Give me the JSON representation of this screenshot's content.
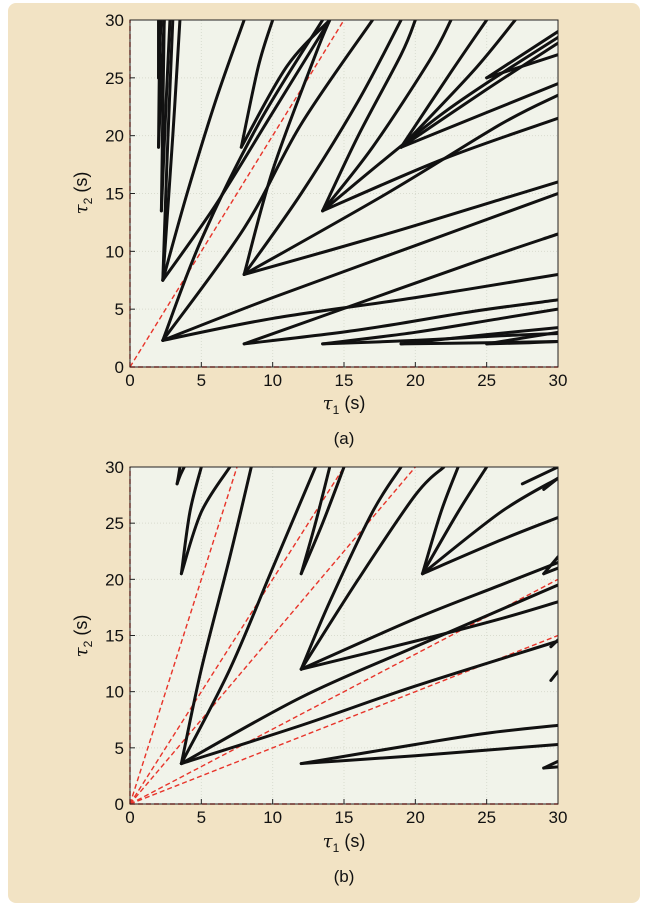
{
  "figure": {
    "background_color": "#f2e3c4",
    "plot_bg_color": "#f1f3ea",
    "curve_color": "#111111",
    "dashed_color": "#e8342a"
  },
  "chart_data": [
    {
      "type": "line",
      "caption": "(a)",
      "xlabel_symbol": "τ",
      "xlabel_sub": "1",
      "xlabel_unit": " (s)",
      "ylabel_symbol": "τ",
      "ylabel_sub": "2",
      "ylabel_unit": " (s)",
      "xlim": [
        0,
        30
      ],
      "ylim": [
        0,
        30
      ],
      "xticks": [
        "0",
        "5",
        "10",
        "15",
        "20",
        "25",
        "30"
      ],
      "yticks": [
        "0",
        "5",
        "10",
        "15",
        "20",
        "25",
        "30"
      ],
      "grid": true,
      "dashed_lines": [
        {
          "x": [
            0,
            30
          ],
          "y": [
            0,
            0
          ]
        },
        {
          "x": [
            0,
            0
          ],
          "y": [
            0,
            30
          ]
        },
        {
          "x": [
            0,
            15
          ],
          "y": [
            0,
            30
          ]
        }
      ],
      "curves": [
        {
          "x": [
            2.3,
            10,
            20,
            30
          ],
          "y": [
            2.3,
            6.0,
            10.5,
            15.0
          ]
        },
        {
          "x": [
            2.3,
            10,
            20,
            30
          ],
          "y": [
            2.3,
            4.2,
            6.0,
            8.0
          ]
        },
        {
          "x": [
            2.3,
            8,
            12,
            17
          ],
          "y": [
            2.3,
            12,
            21,
            30
          ]
        },
        {
          "x": [
            2.3,
            5,
            9,
            13.5
          ],
          "y": [
            2.3,
            11,
            21,
            30
          ]
        },
        {
          "x": [
            8,
            16,
            24,
            30
          ],
          "y": [
            2.0,
            5.5,
            9.0,
            11.5
          ]
        },
        {
          "x": [
            8,
            16,
            24,
            30
          ],
          "y": [
            2.0,
            3.2,
            4.8,
            5.8
          ]
        },
        {
          "x": [
            8,
            18,
            26,
            30
          ],
          "y": [
            8,
            15,
            21,
            23.5
          ]
        },
        {
          "x": [
            8,
            18,
            26,
            30
          ],
          "y": [
            8,
            11.5,
            14.5,
            16
          ]
        },
        {
          "x": [
            8,
            12,
            16,
            19
          ],
          "y": [
            8,
            15,
            23,
            30
          ]
        },
        {
          "x": [
            8,
            10,
            13,
            14
          ],
          "y": [
            8,
            17,
            27,
            30
          ]
        },
        {
          "x": [
            13.5,
            20,
            26,
            30
          ],
          "y": [
            2.0,
            3.0,
            4.2,
            5.0
          ]
        },
        {
          "x": [
            13.5,
            20,
            26,
            30
          ],
          "y": [
            2.0,
            2.3,
            2.7,
            2.9
          ]
        },
        {
          "x": [
            13.5,
            22,
            30
          ],
          "y": [
            13.5,
            22,
            28.5
          ]
        },
        {
          "x": [
            13.5,
            22,
            30
          ],
          "y": [
            13.5,
            18,
            21.5
          ]
        },
        {
          "x": [
            13.5,
            17,
            21,
            22.5
          ],
          "y": [
            13.5,
            19,
            26.5,
            30
          ]
        },
        {
          "x": [
            13.5,
            16,
            19,
            20
          ],
          "y": [
            13.5,
            20,
            27,
            30
          ]
        },
        {
          "x": [
            19,
            25,
            30
          ],
          "y": [
            2.0,
            2.8,
            3.4
          ]
        },
        {
          "x": [
            19,
            25,
            30
          ],
          "y": [
            2.0,
            2.1,
            2.2
          ]
        },
        {
          "x": [
            19,
            25,
            30
          ],
          "y": [
            19,
            24,
            28
          ]
        },
        {
          "x": [
            19,
            25,
            30
          ],
          "y": [
            19,
            22,
            24.5
          ]
        },
        {
          "x": [
            19,
            24,
            27
          ],
          "y": [
            19,
            25.5,
            30
          ]
        },
        {
          "x": [
            19,
            22.5,
            25
          ],
          "y": [
            19,
            25.5,
            30
          ]
        },
        {
          "x": [
            25,
            28,
            30
          ],
          "y": [
            2.0,
            2.6,
            3.0
          ]
        },
        {
          "x": [
            25,
            28,
            30
          ],
          "y": [
            2.0,
            2.1,
            2.2
          ]
        },
        {
          "x": [
            25,
            30
          ],
          "y": [
            25,
            29
          ]
        },
        {
          "x": [
            25,
            30
          ],
          "y": [
            25,
            27
          ]
        },
        {
          "x": [
            2.3,
            3.0,
            3.5
          ],
          "y": [
            7.5,
            20,
            30
          ]
        },
        {
          "x": [
            2.3,
            2.6,
            3.0
          ],
          "y": [
            7.5,
            18,
            30
          ]
        },
        {
          "x": [
            2.2,
            2.5,
            2.8
          ],
          "y": [
            13.5,
            22,
            30
          ]
        },
        {
          "x": [
            2.2,
            2.3,
            2.4
          ],
          "y": [
            13.5,
            22,
            30
          ]
        },
        {
          "x": [
            2.0,
            2.2,
            2.4
          ],
          "y": [
            19,
            25,
            30
          ]
        },
        {
          "x": [
            2.0,
            2.05,
            2.1
          ],
          "y": [
            19,
            25,
            30
          ]
        },
        {
          "x": [
            2.0,
            2.1,
            2.2
          ],
          "y": [
            25,
            28,
            30
          ]
        },
        {
          "x": [
            2.0,
            2.0,
            2.0
          ],
          "y": [
            25,
            28,
            30
          ]
        },
        {
          "x": [
            7.8,
            11,
            14
          ],
          "y": [
            19,
            26,
            30
          ]
        },
        {
          "x": [
            7.8,
            9,
            10
          ],
          "y": [
            19,
            26,
            30
          ]
        },
        {
          "x": [
            2.3,
            6,
            10,
            14
          ],
          "y": [
            7.5,
            14,
            22,
            30
          ]
        },
        {
          "x": [
            2.3,
            4,
            6,
            8
          ],
          "y": [
            7.5,
            15,
            23,
            30
          ]
        }
      ]
    },
    {
      "type": "line",
      "caption": "(b)",
      "xlabel_symbol": "τ",
      "xlabel_sub": "1",
      "xlabel_unit": " (s)",
      "ylabel_symbol": "τ",
      "ylabel_sub": "2",
      "ylabel_unit": " (s)",
      "xlim": [
        0,
        30
      ],
      "ylim": [
        0,
        30
      ],
      "xticks": [
        "0",
        "5",
        "10",
        "15",
        "20",
        "25",
        "30"
      ],
      "yticks": [
        "0",
        "5",
        "10",
        "15",
        "20",
        "25",
        "30"
      ],
      "grid": true,
      "dashed_lines": [
        {
          "x": [
            0,
            30
          ],
          "y": [
            0,
            0
          ]
        },
        {
          "x": [
            0,
            0
          ],
          "y": [
            0,
            30
          ]
        },
        {
          "x": [
            0,
            7.5
          ],
          "y": [
            0,
            30
          ]
        },
        {
          "x": [
            0,
            15
          ],
          "y": [
            0,
            30
          ]
        },
        {
          "x": [
            0,
            20
          ],
          "y": [
            0,
            30
          ]
        },
        {
          "x": [
            0,
            30
          ],
          "y": [
            0,
            20
          ]
        },
        {
          "x": [
            0,
            30
          ],
          "y": [
            0,
            15
          ]
        }
      ],
      "curves": [
        {
          "x": [
            3.6,
            12,
            20,
            30
          ],
          "y": [
            3.6,
            9.5,
            14,
            19.5
          ]
        },
        {
          "x": [
            3.6,
            12,
            20,
            30
          ],
          "y": [
            3.6,
            7,
            10.5,
            14.5
          ]
        },
        {
          "x": [
            3.6,
            7,
            10,
            13
          ],
          "y": [
            3.6,
            12,
            21,
            30
          ]
        },
        {
          "x": [
            3.6,
            5,
            7,
            8.5
          ],
          "y": [
            3.6,
            12,
            22,
            30
          ]
        },
        {
          "x": [
            12,
            20,
            25,
            30
          ],
          "y": [
            3.6,
            5.3,
            6.3,
            7.0
          ]
        },
        {
          "x": [
            12,
            20,
            25,
            30
          ],
          "y": [
            3.6,
            4.3,
            4.8,
            5.3
          ]
        },
        {
          "x": [
            12,
            20,
            26,
            30
          ],
          "y": [
            12,
            16.5,
            19.5,
            21.5
          ]
        },
        {
          "x": [
            12,
            20,
            26,
            30
          ],
          "y": [
            12,
            14.5,
            16.5,
            18
          ]
        },
        {
          "x": [
            12,
            16,
            20,
            22
          ],
          "y": [
            12,
            20,
            27.5,
            30
          ]
        },
        {
          "x": [
            12,
            14,
            17,
            19
          ],
          "y": [
            12,
            18,
            26,
            30
          ]
        },
        {
          "x": [
            20.5,
            26,
            30
          ],
          "y": [
            20.5,
            26,
            29
          ]
        },
        {
          "x": [
            20.5,
            26,
            30
          ],
          "y": [
            20.5,
            23.5,
            25.5
          ]
        },
        {
          "x": [
            20.5,
            23,
            25
          ],
          "y": [
            20.5,
            26,
            30
          ]
        },
        {
          "x": [
            20.5,
            21.8,
            23
          ],
          "y": [
            20.5,
            26,
            30
          ]
        },
        {
          "x": [
            3.6,
            5,
            7
          ],
          "y": [
            20.5,
            26,
            30
          ]
        },
        {
          "x": [
            3.6,
            4.2,
            5
          ],
          "y": [
            20.5,
            26,
            30
          ]
        },
        {
          "x": [
            3.3,
            3.5,
            3.8
          ],
          "y": [
            28.5,
            29.2,
            30
          ]
        },
        {
          "x": [
            3.3,
            3.4,
            3.5
          ],
          "y": [
            28.5,
            29.2,
            30
          ]
        },
        {
          "x": [
            12,
            13.5,
            15
          ],
          "y": [
            20.5,
            25,
            30
          ]
        },
        {
          "x": [
            12,
            13,
            14
          ],
          "y": [
            20.5,
            25,
            30
          ]
        },
        {
          "x": [
            29,
            30
          ],
          "y": [
            3.2,
            3.8
          ]
        },
        {
          "x": [
            29,
            30
          ],
          "y": [
            3.2,
            3.3
          ]
        },
        {
          "x": [
            29,
            30
          ],
          "y": [
            20.5,
            22
          ]
        },
        {
          "x": [
            29,
            30
          ],
          "y": [
            20.5,
            21
          ]
        },
        {
          "x": [
            29.5,
            30
          ],
          "y": [
            11,
            11.8
          ]
        },
        {
          "x": [
            29.5,
            30
          ],
          "y": [
            14,
            14.6
          ]
        },
        {
          "x": [
            29,
            30
          ],
          "y": [
            28,
            29
          ]
        },
        {
          "x": [
            27.5,
            30
          ],
          "y": [
            28.5,
            30
          ]
        }
      ]
    }
  ]
}
